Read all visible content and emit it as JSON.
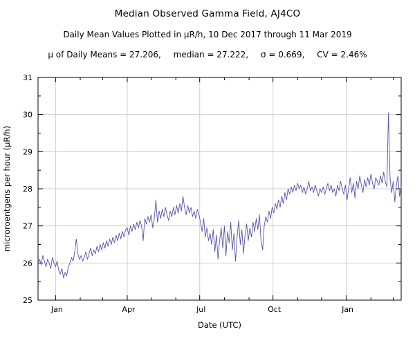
{
  "header": {
    "title": "Median Observed Gamma Field, AJ4CO",
    "subtitle": "Daily Mean Values Plotted in μR/h, 10 Dec 2017 through 11 Mar 2019",
    "stats": {
      "mu": "μ of Daily Means = 27.206,",
      "median": "median = 27.222,",
      "sigma": "σ = 0.669,",
      "cv": "CV = 2.46%"
    }
  },
  "chart_data": {
    "type": "line",
    "title": "Median Observed Gamma Field, AJ4CO",
    "xlabel": "Date (UTC)",
    "ylabel": "microroentgens per hour (μR/h)",
    "x_range_label": "10 Dec 2017 through 11 Mar 2019",
    "ylim": [
      25,
      31
    ],
    "y_major_ticks": [
      25,
      26,
      27,
      28,
      29,
      30,
      31
    ],
    "x_domain_days": [
      0,
      456
    ],
    "x_major_ticks": [
      {
        "day": 22,
        "label": "Jan"
      },
      {
        "day": 112,
        "label": "Apr"
      },
      {
        "day": 203,
        "label": "Jul"
      },
      {
        "day": 295,
        "label": "Oct"
      },
      {
        "day": 387,
        "label": "Jan"
      }
    ],
    "x_minor_ticks_days": [
      53,
      81,
      142,
      173,
      234,
      265,
      326,
      356,
      418,
      446
    ],
    "grid": true,
    "legend": "none",
    "annotations": {
      "mean_of_daily_means": 27.206,
      "median": 27.222,
      "sigma": 0.669,
      "cv_percent": 2.46
    },
    "colors": {
      "line": "#5353a9",
      "grid": "#cfcfcf",
      "frame": "#000000",
      "text": "#000000",
      "background": "#ffffff"
    },
    "series": [
      {
        "name": "daily-mean-gamma",
        "x_start_day": 0,
        "x_step_days": 2,
        "values": [
          26.0,
          26.1,
          25.95,
          26.2,
          26.05,
          25.9,
          26.1,
          26.0,
          25.85,
          26.15,
          26.0,
          25.9,
          26.05,
          25.8,
          25.7,
          25.85,
          25.6,
          25.75,
          25.65,
          25.9,
          26.0,
          26.15,
          26.05,
          26.3,
          26.65,
          26.25,
          26.1,
          26.2,
          26.05,
          26.15,
          26.3,
          26.1,
          26.25,
          26.4,
          26.2,
          26.35,
          26.25,
          26.45,
          26.3,
          26.5,
          26.35,
          26.55,
          26.4,
          26.6,
          26.45,
          26.65,
          26.5,
          26.7,
          26.55,
          26.75,
          26.6,
          26.8,
          26.65,
          26.85,
          26.7,
          26.9,
          26.95,
          26.75,
          27.0,
          26.85,
          27.05,
          26.9,
          27.1,
          26.95,
          27.15,
          27.0,
          26.6,
          27.2,
          27.05,
          27.25,
          27.1,
          27.3,
          26.95,
          27.2,
          27.7,
          27.1,
          27.4,
          27.2,
          27.45,
          27.25,
          27.5,
          27.3,
          27.15,
          27.4,
          27.25,
          27.5,
          27.3,
          27.55,
          27.35,
          27.6,
          27.4,
          27.8,
          27.5,
          27.3,
          27.55,
          27.35,
          27.5,
          27.25,
          27.4,
          27.2,
          27.45,
          27.3,
          27.1,
          26.85,
          27.2,
          26.7,
          26.95,
          26.6,
          26.8,
          26.5,
          26.9,
          26.3,
          26.75,
          26.1,
          26.6,
          26.95,
          26.4,
          27.0,
          26.2,
          26.85,
          26.55,
          27.1,
          26.35,
          26.8,
          26.05,
          26.7,
          27.15,
          26.5,
          26.9,
          26.25,
          26.75,
          27.05,
          26.6,
          26.95,
          26.7,
          27.1,
          26.85,
          27.2,
          26.9,
          27.3,
          26.6,
          26.35,
          27.0,
          27.25,
          27.1,
          27.4,
          27.2,
          27.5,
          27.35,
          27.6,
          27.45,
          27.7,
          27.5,
          27.8,
          27.6,
          27.9,
          27.7,
          28.0,
          27.85,
          28.05,
          27.9,
          28.1,
          27.95,
          28.15,
          28.0,
          28.1,
          27.9,
          28.05,
          27.85,
          28.0,
          28.2,
          27.95,
          28.05,
          27.9,
          28.1,
          27.95,
          27.8,
          28.0,
          27.9,
          28.05,
          27.85,
          28.0,
          28.15,
          27.95,
          28.1,
          27.9,
          28.0,
          27.8,
          28.1,
          27.95,
          28.2,
          28.0,
          27.85,
          28.1,
          27.7,
          28.0,
          28.3,
          27.9,
          28.15,
          27.75,
          28.2,
          28.0,
          28.35,
          28.1,
          27.9,
          28.25,
          28.05,
          28.3,
          28.1,
          28.4,
          28.15,
          28.0,
          28.3,
          28.2,
          28.1,
          28.35,
          28.15,
          28.45,
          28.2,
          28.05,
          30.05,
          28.3,
          27.9,
          28.2,
          27.65,
          28.1,
          28.35,
          27.8,
          28.05
        ]
      }
    ]
  }
}
